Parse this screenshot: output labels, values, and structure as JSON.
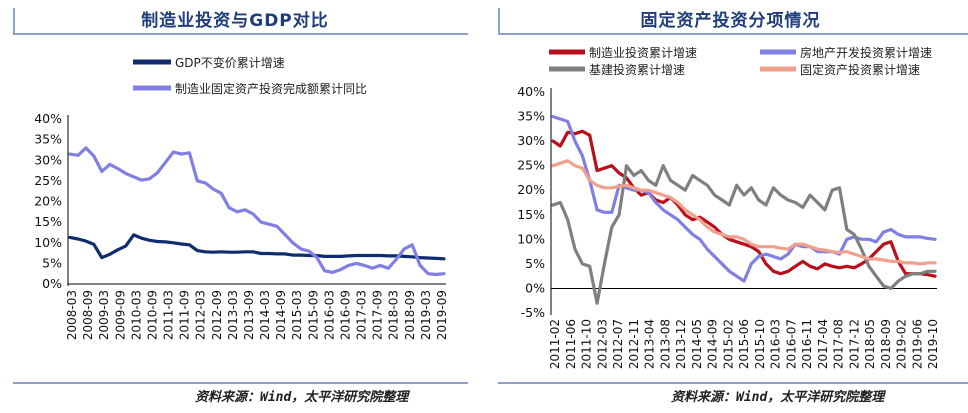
{
  "left": {
    "title": "制造业投资与GDP对比",
    "source": "资料来源：Wind，太平洋研究院整理"
  },
  "right": {
    "title": "固定资产投资分项情况",
    "source": "资料来源：Wind，太平洋研究院整理"
  },
  "chart_data": [
    {
      "type": "line",
      "title": "制造业投资与GDP对比",
      "ylim": [
        0,
        40
      ],
      "yticks": [
        0,
        5,
        10,
        15,
        20,
        25,
        30,
        35,
        40
      ],
      "ytick_labels": [
        "0%",
        "5%",
        "10%",
        "15%",
        "20%",
        "25%",
        "30%",
        "35%",
        "40%"
      ],
      "xtick_labels": [
        "2008-03",
        "2008-09",
        "2009-03",
        "2009-09",
        "2010-03",
        "2010-09",
        "2011-03",
        "2011-09",
        "2012-03",
        "2012-09",
        "2013-03",
        "2013-09",
        "2014-03",
        "2014-09",
        "2015-03",
        "2015-09",
        "2016-03",
        "2016-09",
        "2017-03",
        "2017-09",
        "2018-03",
        "2018-09",
        "2019-03",
        "2019-09"
      ],
      "legend_position": "top",
      "grid": false,
      "series": [
        {
          "name": "GDP不变价累计增速",
          "color": "#0e2c6e",
          "values": [
            11.3,
            10.9,
            10.4,
            9.6,
            6.4,
            7.2,
            8.3,
            9.2,
            11.9,
            11.1,
            10.6,
            10.3,
            10.2,
            10.0,
            9.7,
            9.5,
            8.1,
            7.8,
            7.7,
            7.8,
            7.7,
            7.7,
            7.8,
            7.8,
            7.4,
            7.4,
            7.3,
            7.3,
            7.0,
            7.0,
            6.9,
            6.9,
            6.7,
            6.7,
            6.7,
            6.8,
            6.9,
            6.9,
            6.9,
            6.9,
            6.8,
            6.8,
            6.7,
            6.6,
            6.4,
            6.3,
            6.2,
            6.1
          ]
        },
        {
          "name": "制造业固定资产投资完成额累计同比",
          "color": "#7f7fe5",
          "values": [
            31.5,
            31.2,
            33.0,
            31.0,
            27.3,
            29.0,
            28.0,
            26.8,
            26.0,
            25.2,
            25.5,
            27.0,
            29.5,
            32.0,
            31.5,
            31.8,
            25.0,
            24.5,
            23.0,
            22.0,
            18.5,
            17.5,
            18.0,
            17.0,
            15.0,
            14.5,
            14.0,
            12.0,
            10.0,
            8.5,
            8.0,
            6.5,
            3.2,
            2.8,
            3.5,
            4.5,
            5.0,
            4.5,
            3.8,
            4.5,
            3.8,
            6.0,
            8.5,
            9.5,
            4.5,
            2.5,
            2.3,
            2.5
          ]
        }
      ]
    },
    {
      "type": "line",
      "title": "固定资产投资分项情况",
      "ylim": [
        -5,
        40
      ],
      "yticks": [
        -5,
        0,
        5,
        10,
        15,
        20,
        25,
        30,
        35,
        40
      ],
      "ytick_labels": [
        "-5%",
        "0%",
        "5%",
        "10%",
        "15%",
        "20%",
        "25%",
        "30%",
        "35%",
        "40%"
      ],
      "xtick_labels": [
        "2011-02",
        "2011-06",
        "2011-10",
        "2012-03",
        "2012-07",
        "2012-11",
        "2013-04",
        "2013-08",
        "2013-12",
        "2014-05",
        "2014-09",
        "2015-02",
        "2015-06",
        "2015-10",
        "2016-03",
        "2016-07",
        "2016-11",
        "2017-04",
        "2017-08",
        "2017-12",
        "2018-05",
        "2018-09",
        "2019-02",
        "2019-06",
        "2019-10"
      ],
      "legend_position": "top",
      "grid": false,
      "series": [
        {
          "name": "制造业投资累计增速",
          "color": "#b80f1a",
          "values": [
            30.0,
            29.0,
            31.8,
            31.5,
            32.0,
            31.2,
            24.0,
            24.5,
            25.0,
            23.5,
            22.5,
            20.5,
            19.0,
            19.5,
            18.0,
            17.5,
            18.5,
            17.0,
            15.0,
            14.0,
            14.5,
            13.5,
            12.5,
            11.0,
            10.0,
            9.5,
            9.0,
            8.5,
            7.5,
            5.0,
            3.5,
            3.0,
            3.5,
            4.5,
            5.5,
            4.5,
            4.0,
            5.0,
            4.5,
            4.2,
            4.5,
            4.2,
            5.0,
            6.0,
            7.5,
            9.0,
            9.5,
            5.5,
            3.0,
            3.0,
            3.0,
            2.8,
            2.5
          ]
        },
        {
          "name": "房地产开发投资累计增速",
          "color": "#7f7fe5",
          "values": [
            35.0,
            34.5,
            34.0,
            30.0,
            27.0,
            22.0,
            16.0,
            15.5,
            15.5,
            21.0,
            20.5,
            20.0,
            20.0,
            19.5,
            17.5,
            16.0,
            15.0,
            14.0,
            12.5,
            11.0,
            10.0,
            8.0,
            6.5,
            5.0,
            3.5,
            2.5,
            1.5,
            5.0,
            6.5,
            7.0,
            6.5,
            6.0,
            7.0,
            9.0,
            8.5,
            8.5,
            7.5,
            7.5,
            7.5,
            7.0,
            10.0,
            10.5,
            10.0,
            10.0,
            9.5,
            11.5,
            12.0,
            11.0,
            10.5,
            10.5,
            10.5,
            10.2,
            10.0
          ]
        },
        {
          "name": "基建投资累计增速",
          "color": "#7f7f7f",
          "values": [
            17.0,
            17.5,
            14.0,
            8.0,
            5.0,
            4.5,
            -3.0,
            5.0,
            12.5,
            15.0,
            25.0,
            23.0,
            24.0,
            22.0,
            21.0,
            25.0,
            22.0,
            21.0,
            20.0,
            23.0,
            22.0,
            21.0,
            19.0,
            18.0,
            17.0,
            21.0,
            19.0,
            20.5,
            18.0,
            17.0,
            20.5,
            19.0,
            18.0,
            17.5,
            16.5,
            19.0,
            17.5,
            16.0,
            20.0,
            20.5,
            12.0,
            11.0,
            8.0,
            4.5,
            2.5,
            0.5,
            0.0,
            1.5,
            2.5,
            3.0,
            3.0,
            3.5,
            3.5
          ]
        },
        {
          "name": "固定资产投资累计增速",
          "color": "#f0a08c",
          "values": [
            25.0,
            25.5,
            26.0,
            25.0,
            24.5,
            22.0,
            21.0,
            20.5,
            20.5,
            20.8,
            21.0,
            20.5,
            20.0,
            20.0,
            19.5,
            19.0,
            18.5,
            17.5,
            16.0,
            15.0,
            14.0,
            12.5,
            11.5,
            11.0,
            10.5,
            10.5,
            10.0,
            9.0,
            8.5,
            8.5,
            8.5,
            8.2,
            8.0,
            9.0,
            9.0,
            8.5,
            8.0,
            7.8,
            7.5,
            7.3,
            7.5,
            7.0,
            6.5,
            6.0,
            6.0,
            5.8,
            5.5,
            5.5,
            5.2,
            5.2,
            5.0,
            5.2,
            5.2
          ]
        }
      ]
    }
  ]
}
